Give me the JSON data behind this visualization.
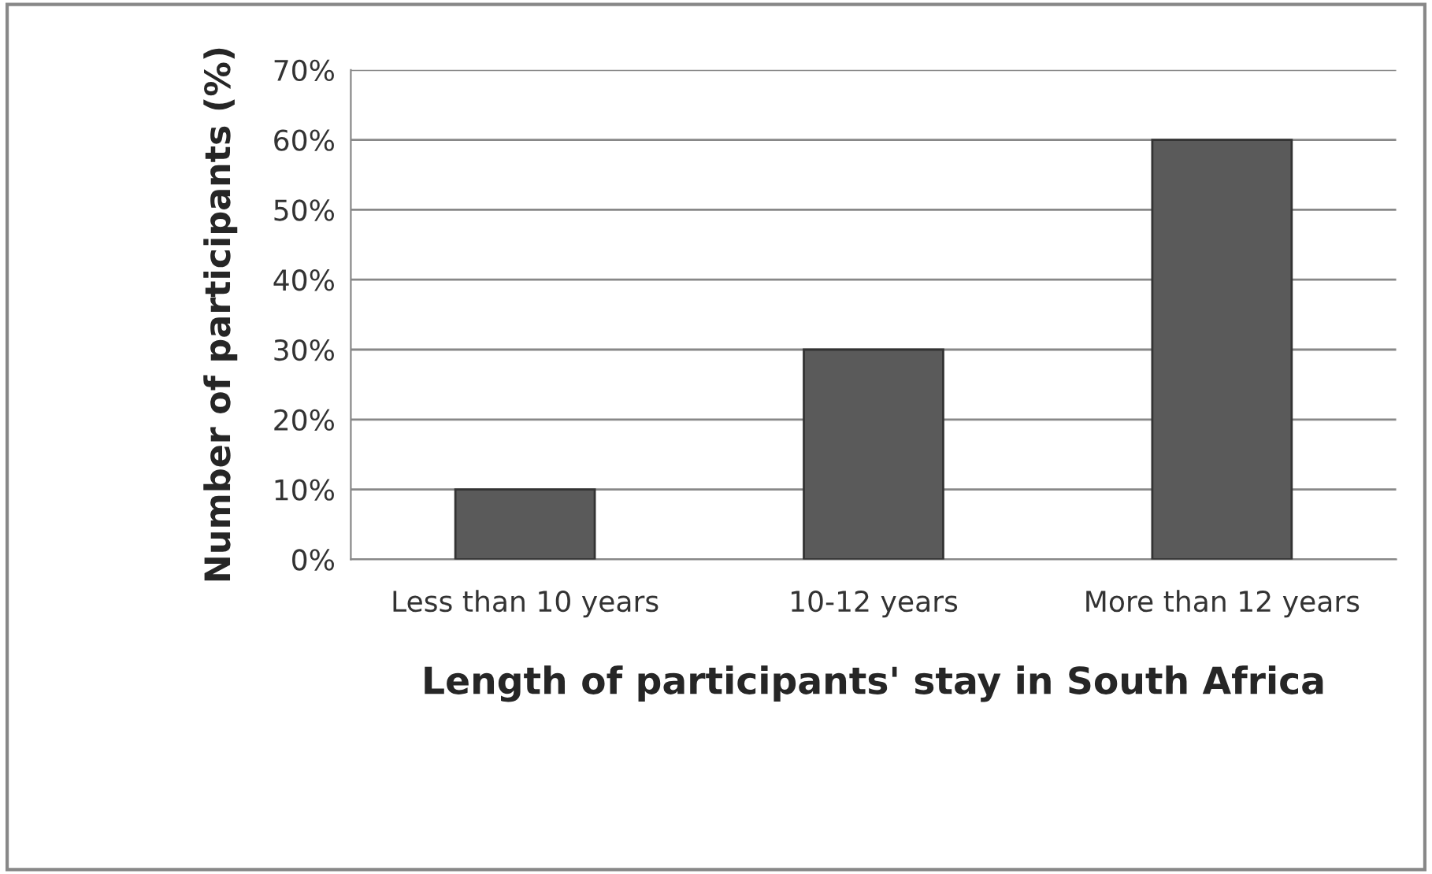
{
  "chart_data": {
    "type": "bar",
    "xlabel": "Length of participants' stay in South Africa",
    "ylabel": "Number of participants (%)",
    "categories": [
      "Less than 10 years",
      "10-12 years",
      "More than 12 years"
    ],
    "values": [
      10,
      30,
      60
    ],
    "color": "#5a5a5a",
    "ylim": [
      0,
      70
    ],
    "yticks": [
      {
        "value": 0,
        "label": "0%"
      },
      {
        "value": 10,
        "label": "10%"
      },
      {
        "value": 20,
        "label": "20%"
      },
      {
        "value": 30,
        "label": "30%"
      },
      {
        "value": 40,
        "label": "40%"
      },
      {
        "value": 50,
        "label": "50%"
      },
      {
        "value": 60,
        "label": "60%"
      },
      {
        "value": 70,
        "label": "70%"
      }
    ],
    "grid": "y"
  }
}
